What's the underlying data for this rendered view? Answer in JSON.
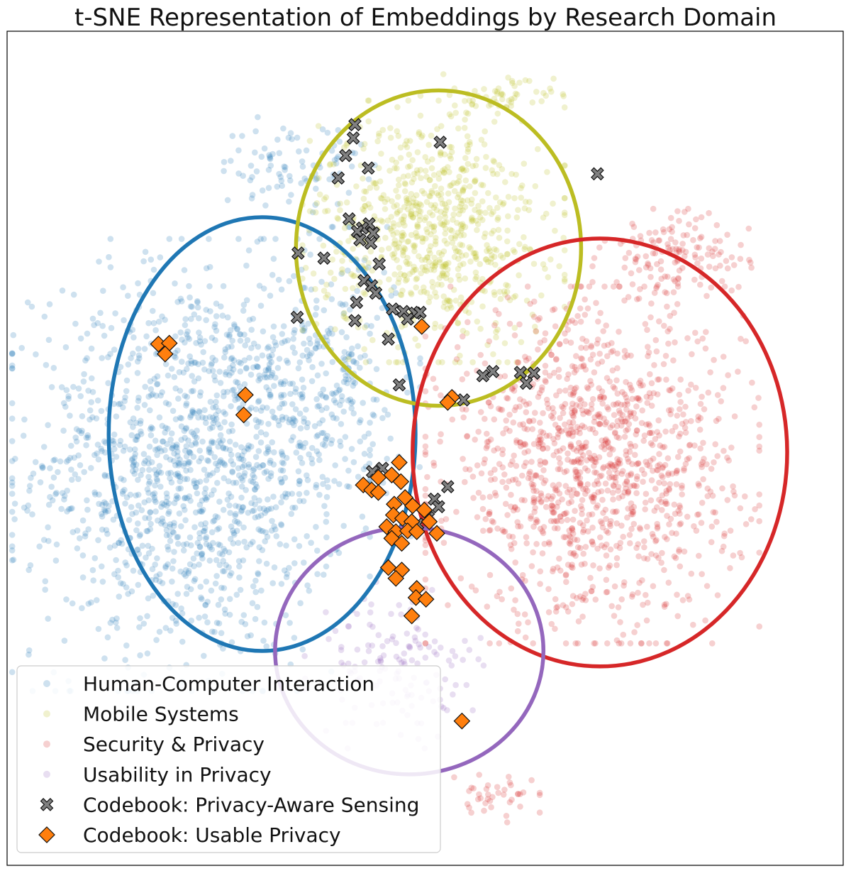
{
  "chart_data": {
    "type": "scatter",
    "title": "t-SNE Representation of Embeddings by Research Domain",
    "xlabel": "",
    "ylabel": "",
    "xlim": [
      0,
      100
    ],
    "ylim": [
      0,
      100
    ],
    "axis_ticks": false,
    "grid": false,
    "legend_position": "lower-left",
    "series": [
      {
        "name": "Human-Computer Interaction",
        "kind": "cloud",
        "color": "#1f77b4",
        "clusters": [
          {
            "center": [
              22,
              48
            ],
            "spread": [
              15,
              19
            ],
            "count": 1350
          },
          {
            "center": [
              38,
              58
            ],
            "spread": [
              8,
              13
            ],
            "count": 260
          },
          {
            "center": [
              34,
              84
            ],
            "spread": [
              7,
              4
            ],
            "count": 90
          }
        ]
      },
      {
        "name": "Mobile Systems",
        "kind": "cloud",
        "color": "#bcbd22",
        "clusters": [
          {
            "center": [
              51,
              76
            ],
            "spread": [
              11,
              11
            ],
            "count": 760
          },
          {
            "center": [
              58,
              92
            ],
            "spread": [
              6,
              2
            ],
            "count": 60
          }
        ]
      },
      {
        "name": "Security & Privacy",
        "kind": "cloud",
        "color": "#d62728",
        "clusters": [
          {
            "center": [
              70,
              48
            ],
            "spread": [
              14,
              15
            ],
            "count": 1250
          },
          {
            "center": [
              80,
              73
            ],
            "spread": [
              7,
              4
            ],
            "count": 140
          },
          {
            "center": [
              58,
              8
            ],
            "spread": [
              4,
              2
            ],
            "count": 40
          }
        ]
      },
      {
        "name": "Usability in Privacy",
        "kind": "cloud",
        "color": "#9467bd",
        "clusters": [
          {
            "center": [
              47,
              24
            ],
            "spread": [
              8,
              7
            ],
            "count": 140
          }
        ]
      },
      {
        "name": "Codebook: Privacy-Aware Sensing",
        "kind": "marker-x",
        "color": "#808080",
        "points": [
          [
            41.6,
            88.8
          ],
          [
            41.4,
            87.2
          ],
          [
            51.8,
            86.7
          ],
          [
            40.5,
            85.1
          ],
          [
            43.2,
            83.6
          ],
          [
            39.6,
            82.4
          ],
          [
            70.6,
            82.9
          ],
          [
            40.9,
            77.5
          ],
          [
            43.3,
            76.9
          ],
          [
            42.5,
            76.4
          ],
          [
            41.9,
            76.0
          ],
          [
            43.8,
            75.8
          ],
          [
            42.2,
            75.0
          ],
          [
            43.5,
            74.6
          ],
          [
            34.8,
            73.4
          ],
          [
            37.9,
            72.8
          ],
          [
            44.5,
            72.1
          ],
          [
            42.7,
            70.1
          ],
          [
            43.6,
            69.5
          ],
          [
            44.1,
            68.6
          ],
          [
            41.8,
            67.5
          ],
          [
            46.1,
            66.7
          ],
          [
            47.4,
            66.4
          ],
          [
            48.8,
            66.2
          ],
          [
            49.4,
            66.3
          ],
          [
            47.9,
            65.5
          ],
          [
            34.7,
            65.7
          ],
          [
            41.6,
            65.3
          ],
          [
            45.6,
            63.1
          ],
          [
            56.9,
            58.7
          ],
          [
            58.1,
            59.2
          ],
          [
            61.4,
            59.1
          ],
          [
            63.0,
            59.0
          ],
          [
            62.1,
            57.8
          ],
          [
            46.9,
            57.6
          ],
          [
            54.6,
            55.8
          ],
          [
            43.7,
            47.2
          ],
          [
            44.9,
            47.6
          ],
          [
            52.7,
            45.4
          ],
          [
            51.1,
            43.9
          ],
          [
            51.6,
            43.0
          ],
          [
            50.4,
            41.7
          ],
          [
            49.1,
            40.9
          ]
        ]
      },
      {
        "name": "Codebook: Usable Privacy",
        "kind": "marker-diamond",
        "color": "#ff7f0e",
        "points": [
          [
            18.1,
            62.5
          ],
          [
            19.4,
            62.6
          ],
          [
            18.9,
            61.3
          ],
          [
            28.5,
            56.4
          ],
          [
            28.3,
            54.0
          ],
          [
            49.6,
            64.6
          ],
          [
            53.2,
            56.1
          ],
          [
            52.7,
            55.5
          ],
          [
            46.9,
            48.3
          ],
          [
            44.4,
            46.5
          ],
          [
            46.0,
            46.8
          ],
          [
            47.1,
            46.0
          ],
          [
            42.6,
            45.6
          ],
          [
            43.6,
            45.0
          ],
          [
            44.4,
            44.7
          ],
          [
            47.6,
            44.1
          ],
          [
            46.3,
            43.3
          ],
          [
            48.5,
            43.1
          ],
          [
            49.9,
            42.6
          ],
          [
            46.2,
            42.0
          ],
          [
            47.3,
            41.6
          ],
          [
            48.4,
            41.2
          ],
          [
            50.5,
            41.2
          ],
          [
            45.4,
            40.6
          ],
          [
            46.5,
            40.0
          ],
          [
            47.9,
            40.1
          ],
          [
            49.0,
            40.0
          ],
          [
            51.4,
            39.8
          ],
          [
            46.0,
            39.2
          ],
          [
            47.2,
            38.6
          ],
          [
            45.6,
            35.7
          ],
          [
            47.2,
            35.4
          ],
          [
            46.5,
            34.4
          ],
          [
            49.0,
            33.2
          ],
          [
            48.9,
            32.1
          ],
          [
            50.1,
            31.9
          ],
          [
            48.4,
            29.9
          ],
          [
            54.4,
            17.3
          ]
        ]
      }
    ],
    "ellipses": [
      {
        "color": "#1f77b4",
        "center": [
          30.5,
          51.7
        ],
        "width": 36.7,
        "height": 52.0
      },
      {
        "color": "#bcbd22",
        "center": [
          51.6,
          74.0
        ],
        "width": 34.1,
        "height": 37.8
      },
      {
        "color": "#d62728",
        "center": [
          70.9,
          49.5
        ],
        "width": 44.8,
        "height": 51.3
      },
      {
        "color": "#9467bd",
        "center": [
          48.1,
          25.7
        ],
        "width": 32.1,
        "height": 29.6
      }
    ],
    "legend": [
      {
        "label": "Human-Computer Interaction",
        "marker": "circle",
        "color": "#1f77b4"
      },
      {
        "label": "Mobile Systems",
        "marker": "circle",
        "color": "#bcbd22"
      },
      {
        "label": "Security & Privacy",
        "marker": "circle",
        "color": "#d62728"
      },
      {
        "label": "Usability in Privacy",
        "marker": "circle",
        "color": "#9467bd"
      },
      {
        "label": "Codebook: Privacy-Aware Sensing",
        "marker": "x",
        "color": "#808080"
      },
      {
        "label": "Codebook: Usable Privacy",
        "marker": "diamond",
        "color": "#ff7f0e"
      }
    ]
  }
}
